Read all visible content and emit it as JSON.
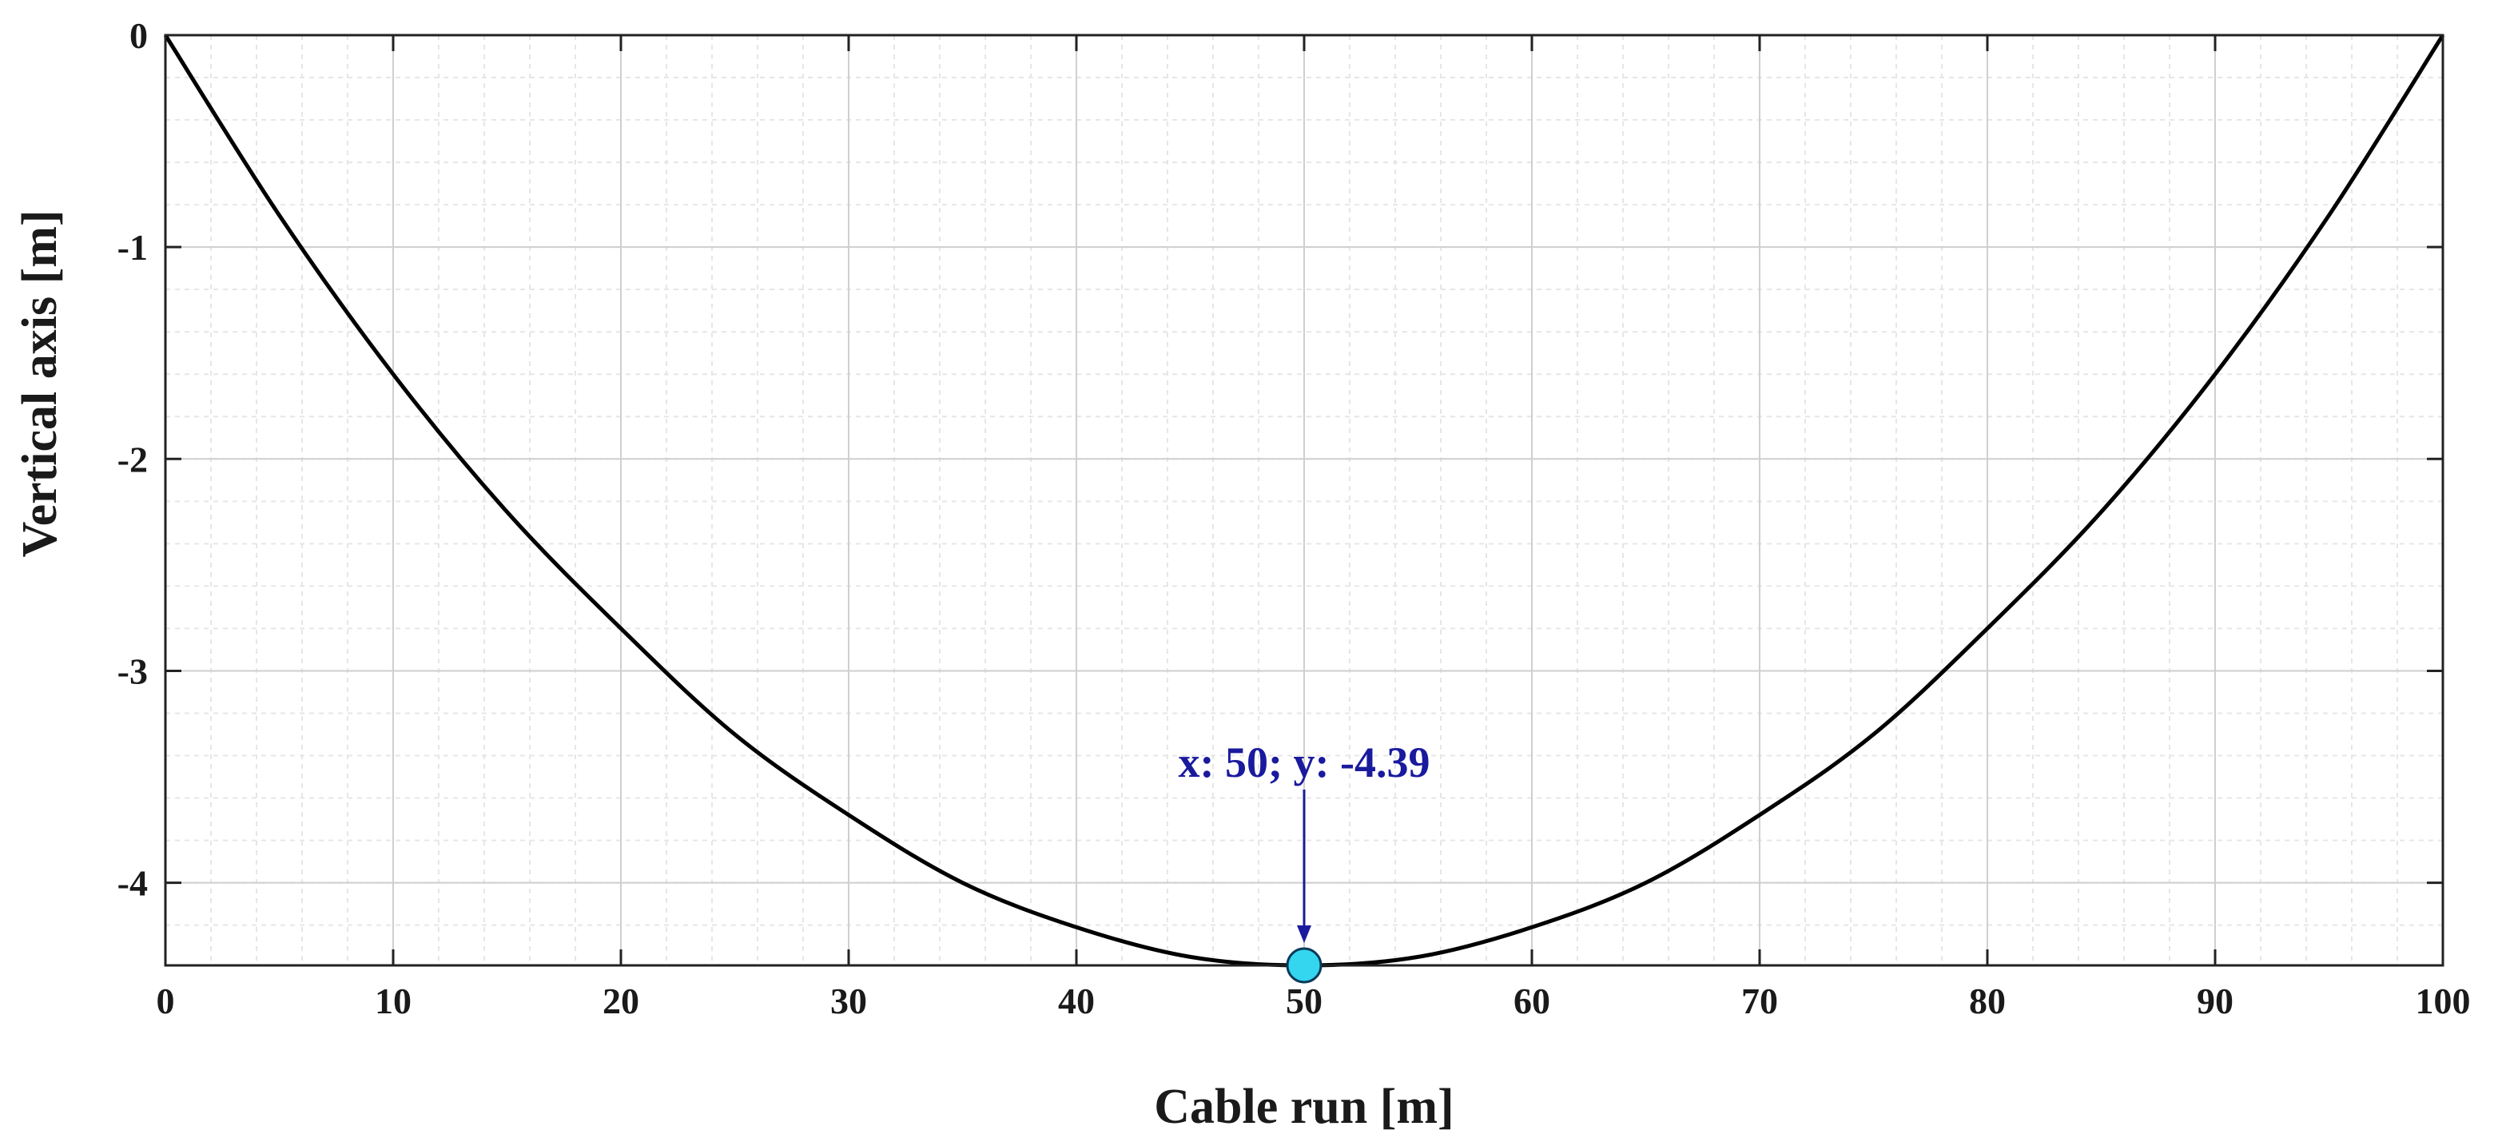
{
  "chart_data": {
    "type": "line",
    "title": "",
    "xlabel": "Cable run [m]",
    "ylabel": "Vertical axis [m]",
    "xlim": [
      0,
      100
    ],
    "ylim": [
      -4.39,
      0
    ],
    "xticks": [
      0,
      10,
      20,
      30,
      40,
      50,
      60,
      70,
      80,
      90,
      100
    ],
    "xtick_labels": [
      "0",
      "10",
      "20",
      "30",
      "40",
      "50",
      "60",
      "70",
      "80",
      "90",
      "100"
    ],
    "yticks": [
      0,
      -1,
      -2,
      -3,
      -4
    ],
    "ytick_labels": [
      "0",
      "-1",
      "-2",
      "-3",
      "-4"
    ],
    "grid": true,
    "minor_grid": true,
    "series": [
      {
        "color": "#000000",
        "x": [
          0,
          5,
          10,
          15,
          20,
          25,
          30,
          35,
          40,
          45,
          50,
          55,
          60,
          65,
          70,
          75,
          80,
          85,
          90,
          95,
          100
        ],
        "y": [
          0,
          -0.85,
          -1.6,
          -2.25,
          -2.8,
          -3.3,
          -3.68,
          -4.0,
          -4.21,
          -4.35,
          -4.39,
          -4.35,
          -4.21,
          -4.0,
          -3.68,
          -3.3,
          -2.8,
          -2.25,
          -1.6,
          -0.85,
          0
        ]
      }
    ],
    "annotations": [
      {
        "text": "x: 50; y: -4.39",
        "point": [
          50,
          -4.39
        ],
        "marker_color": "#33d6ee",
        "text_color": "#1a1a9e"
      }
    ]
  }
}
